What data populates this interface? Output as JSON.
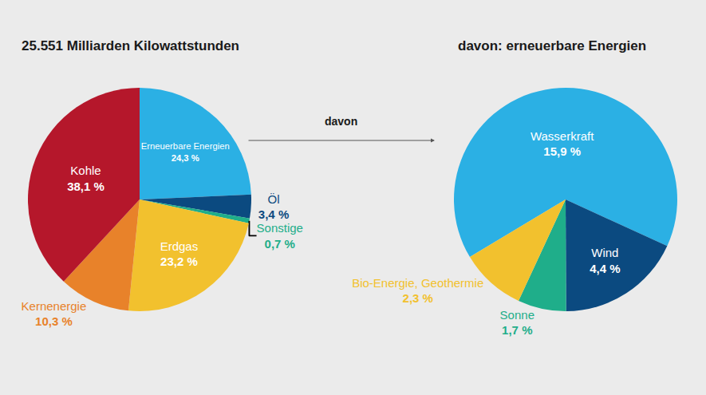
{
  "chart_data": [
    {
      "type": "pie",
      "title": "25.551 Milliarden Kilowattstunden",
      "categories": [
        "Erneuerbare Energien",
        "Öl",
        "Sonstige",
        "Erdgas",
        "Kernenergie",
        "Kohle"
      ],
      "values": [
        24.3,
        3.4,
        0.7,
        23.2,
        10.3,
        38.1
      ],
      "value_labels": [
        "24,3 %",
        "3,4 %",
        "0,7 %",
        "23,2 %",
        "10,3 %",
        "38,1 %"
      ],
      "colors": [
        "#2bb0e4",
        "#0b4a80",
        "#1fae8a",
        "#f2c12e",
        "#e8822a",
        "#b5172b"
      ],
      "data_labels": true,
      "annotations": [
        "davon"
      ]
    },
    {
      "type": "pie",
      "title": "davon: erneuerbare Energien",
      "categories": [
        "Wasserkraft",
        "Wind",
        "Sonne",
        "Bio-Energie, Geothermie"
      ],
      "values": [
        15.9,
        4.4,
        1.7,
        2.3
      ],
      "value_labels": [
        "15,9 %",
        "4,4 %",
        "1,7 %",
        "2,3 %"
      ],
      "colors": [
        "#2bb0e4",
        "#0b4a80",
        "#1fae8a",
        "#f2c12e"
      ],
      "data_labels": true
    }
  ]
}
